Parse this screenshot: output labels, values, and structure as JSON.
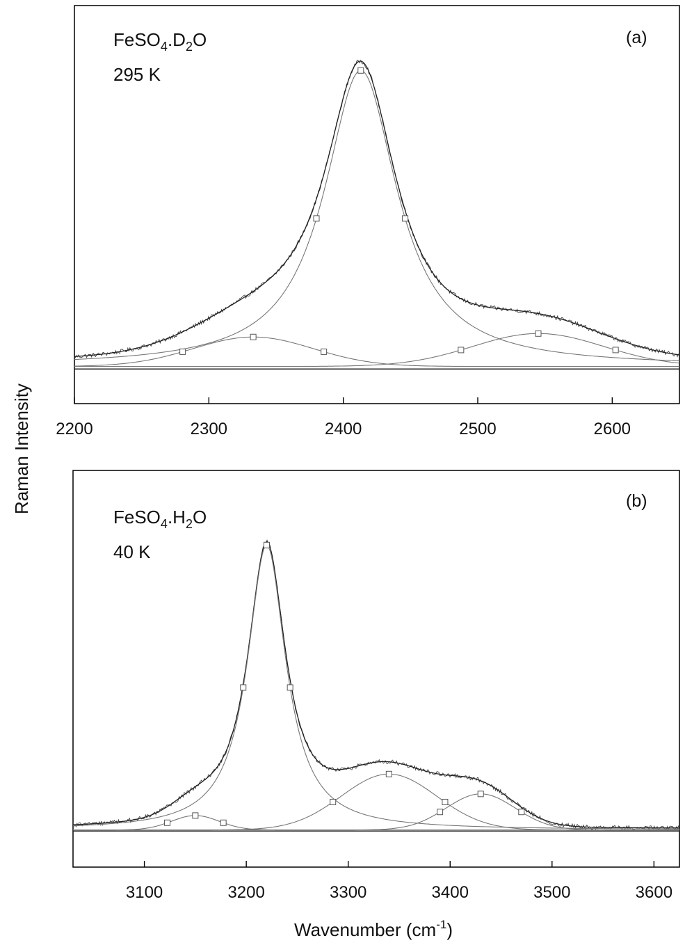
{
  "figure": {
    "ylabel": "Raman Intensity",
    "xlabel_main": "Wavenumber (cm",
    "xlabel_sup": "-1",
    "xlabel_close": ")"
  },
  "chart_data": [
    {
      "type": "line",
      "panel_label": "(a)",
      "annotation": {
        "compound_prefix": "FeSO",
        "sub1": "4",
        "mid": ".D",
        "sub2": "2",
        "suffix": "O",
        "temperature": "295 K"
      },
      "xlim": [
        2200,
        2650
      ],
      "xticks": [
        2200,
        2300,
        2400,
        2500,
        2600
      ],
      "ylim": [
        -0.1,
        1.05
      ],
      "baseline": 0,
      "grid": false,
      "peaks": [
        {
          "center": 2413,
          "height": 0.855,
          "fwhm": 66,
          "shape": "lorentzian"
        },
        {
          "center": 2333,
          "height": 0.085,
          "fwhm": 105,
          "shape": "gaussian"
        },
        {
          "center": 2545,
          "height": 0.095,
          "fwhm": 115,
          "shape": "gaussian"
        }
      ],
      "background_offset": 0.015,
      "series": [
        {
          "role": "observed",
          "noise": 0.006,
          "color": "#444444"
        },
        {
          "role": "fit-envelope",
          "color": "#222222"
        },
        {
          "role": "component",
          "peak": 0,
          "color": "#777777"
        },
        {
          "role": "component",
          "peak": 1,
          "color": "#777777"
        },
        {
          "role": "component",
          "peak": 2,
          "color": "#777777"
        }
      ]
    },
    {
      "type": "line",
      "panel_label": "(b)",
      "annotation": {
        "compound_prefix": "FeSO",
        "sub1": "4",
        "mid": ".H",
        "sub2": "2",
        "suffix": "O",
        "temperature": "40 K"
      },
      "xlim": [
        3030,
        3625
      ],
      "xticks": [
        3100,
        3200,
        3300,
        3400,
        3500,
        3600
      ],
      "ylim": [
        -0.1,
        1.0
      ],
      "baseline": 0,
      "grid": false,
      "peaks": [
        {
          "center": 3220,
          "height": 0.79,
          "fwhm": 46,
          "shape": "lorentzian"
        },
        {
          "center": 3340,
          "height": 0.155,
          "fwhm": 110,
          "shape": "gaussian"
        },
        {
          "center": 3430,
          "height": 0.1,
          "fwhm": 80,
          "shape": "gaussian"
        },
        {
          "center": 3150,
          "height": 0.04,
          "fwhm": 55,
          "shape": "gaussian"
        }
      ],
      "background_offset": 0.006,
      "series": [
        {
          "role": "observed",
          "noise": 0.006,
          "color": "#444444"
        },
        {
          "role": "fit-envelope",
          "color": "#222222"
        },
        {
          "role": "component",
          "peak": 0,
          "color": "#777777"
        },
        {
          "role": "component",
          "peak": 1,
          "color": "#777777"
        },
        {
          "role": "component",
          "peak": 2,
          "color": "#777777"
        },
        {
          "role": "component",
          "peak": 3,
          "color": "#777777"
        }
      ]
    }
  ]
}
